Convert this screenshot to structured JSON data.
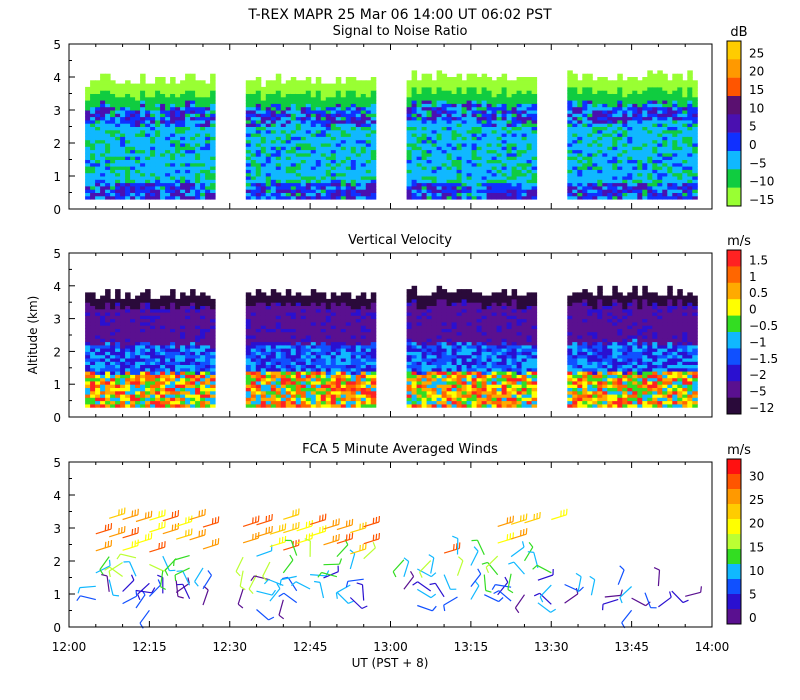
{
  "figure": {
    "title": "T-REX   MAPR 25 Mar 06   14:00 UT   06:02   PST",
    "xlabel": "UT  (PST + 8)",
    "x_ticks": [
      "12:00",
      "12:15",
      "12:30",
      "12:45",
      "13:00",
      "13:15",
      "13:30",
      "13:45",
      "14:00"
    ]
  },
  "chart_data": [
    {
      "type": "heatmap",
      "title": "Signal to Noise Ratio",
      "ylabel": "",
      "ylim": [
        0,
        5
      ],
      "y_ticks": [
        "0",
        "1",
        "2",
        "3",
        "4",
        "5"
      ],
      "colorbar_unit": "dB",
      "colorbar_labels": [
        "25",
        "20",
        "15",
        "10",
        "5",
        "0",
        "−5",
        "−10",
        "−15"
      ],
      "colors": [
        "#ffcc00",
        "#ff9900",
        "#ff5500",
        "#5a1070",
        "#4a10b0",
        "#1030ff",
        "#10b8ff",
        "#10cc40",
        "#99ff33"
      ],
      "segments": [
        {
          "start": "12:03",
          "end": "12:27",
          "bottom_km": 0.3,
          "top_km": 3.8
        },
        {
          "start": "12:33",
          "end": "12:57",
          "bottom_km": 0.3,
          "top_km": 3.8
        },
        {
          "start": "13:03",
          "end": "13:27",
          "bottom_km": 0.3,
          "top_km": 3.9
        },
        {
          "start": "13:33",
          "end": "13:57",
          "bottom_km": 0.3,
          "top_km": 3.9
        }
      ]
    },
    {
      "type": "heatmap",
      "title": "Vertical Velocity",
      "ylabel": "Altitude (km)",
      "ylim": [
        0,
        5
      ],
      "y_ticks": [
        "0",
        "1",
        "2",
        "3",
        "4",
        "5"
      ],
      "colorbar_unit": "m/s",
      "colorbar_labels": [
        "1.5",
        "1",
        "0.5",
        "0",
        "−0.5",
        "−1",
        "−1.5",
        "−2",
        "−5",
        "−12"
      ],
      "colors": [
        "#ff2222",
        "#ff6600",
        "#ffaa00",
        "#ffff00",
        "#33dd22",
        "#10b8ff",
        "#1050ff",
        "#2a10d0",
        "#5a1090",
        "#2a0a3a"
      ],
      "segments": [
        {
          "start": "12:03",
          "end": "12:27",
          "bottom_km": 0.3,
          "top_km": 3.6
        },
        {
          "start": "12:33",
          "end": "12:57",
          "bottom_km": 0.3,
          "top_km": 3.6
        },
        {
          "start": "13:03",
          "end": "13:27",
          "bottom_km": 0.3,
          "top_km": 3.7
        },
        {
          "start": "13:33",
          "end": "13:57",
          "bottom_km": 0.3,
          "top_km": 3.7
        }
      ]
    },
    {
      "type": "scatter",
      "title": "FCA 5 Minute Averaged Winds",
      "ylabel": "",
      "ylim": [
        0,
        5
      ],
      "y_ticks": [
        "0",
        "1",
        "2",
        "3",
        "4",
        "5"
      ],
      "colorbar_unit": "m/s",
      "colorbar_labels": [
        "30",
        "25",
        "20",
        "15",
        "10",
        "5",
        "0"
      ],
      "colors": [
        "#ff1111",
        "#ff5500",
        "#ff9900",
        "#ffcc00",
        "#ffff00",
        "#bbff33",
        "#33dd22",
        "#10b8ff",
        "#1050ff",
        "#2a10d0",
        "#5a1090"
      ],
      "barbs_note": "wind barbs at 5-minute intervals, approx. 0.5-3.4 km"
    }
  ]
}
